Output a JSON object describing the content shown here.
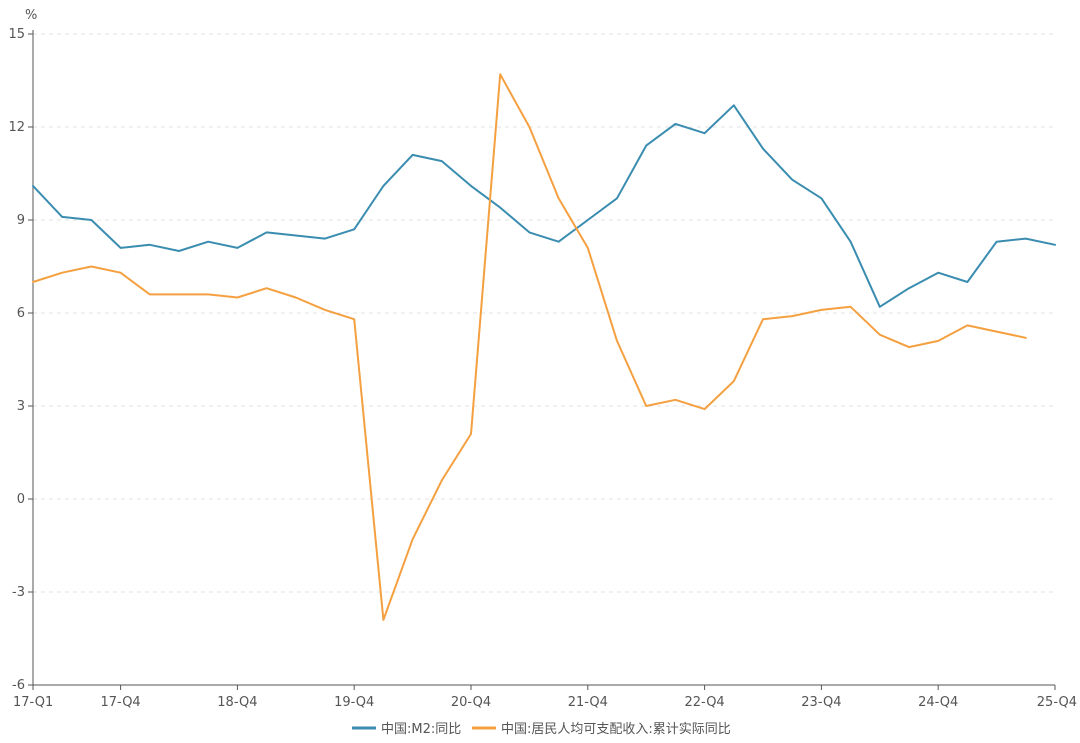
{
  "chart_data": {
    "type": "line",
    "title": "",
    "xlabel": "",
    "ylabel": "%",
    "ylim": [
      -6,
      15
    ],
    "yticks": [
      15,
      12,
      9,
      6,
      3,
      0,
      -3,
      -6
    ],
    "yticklabels": [
      "15",
      "12",
      "9",
      "6",
      "3",
      "0",
      "-3",
      "-6"
    ],
    "grid": "horizontal dashed",
    "legend": "bottom-center",
    "x": [
      "17-Q1",
      "17-Q2",
      "17-Q3",
      "17-Q4",
      "18-Q1",
      "18-Q2",
      "18-Q3",
      "18-Q4",
      "19-Q1",
      "19-Q2",
      "19-Q3",
      "19-Q4",
      "20-Q1",
      "20-Q2",
      "20-Q3",
      "20-Q4",
      "21-Q1",
      "21-Q2",
      "21-Q3",
      "21-Q4",
      "22-Q1",
      "22-Q2",
      "22-Q3",
      "22-Q4",
      "23-Q1",
      "23-Q2",
      "23-Q3",
      "23-Q4",
      "24-Q1",
      "24-Q2",
      "24-Q3",
      "24-Q4",
      "25-Q1",
      "25-Q2",
      "25-Q3",
      "25-Q4"
    ],
    "xtick_labels": [
      {
        "index": 0,
        "label": "17-Q1"
      },
      {
        "index": 3,
        "label": "17-Q4"
      },
      {
        "index": 7,
        "label": "18-Q4"
      },
      {
        "index": 11,
        "label": "19-Q4"
      },
      {
        "index": 15,
        "label": "20-Q4"
      },
      {
        "index": 19,
        "label": "21-Q4"
      },
      {
        "index": 23,
        "label": "22-Q4"
      },
      {
        "index": 27,
        "label": "23-Q4"
      },
      {
        "index": 31,
        "label": "24-Q4"
      },
      {
        "index": 35,
        "label": "25-Q4"
      }
    ],
    "series": [
      {
        "name": "中国:M2:同比",
        "color": "#3A8DB0",
        "values": [
          10.1,
          9.1,
          9.0,
          8.1,
          8.2,
          8.0,
          8.3,
          8.1,
          8.6,
          8.5,
          8.4,
          8.7,
          10.1,
          11.1,
          10.9,
          10.1,
          9.4,
          8.6,
          8.3,
          9.0,
          9.7,
          11.4,
          12.1,
          11.8,
          12.7,
          11.3,
          10.3,
          9.7,
          8.3,
          6.2,
          6.8,
          7.3,
          7.0,
          8.3,
          8.4,
          8.2
        ]
      },
      {
        "name": "中国:居民人均可支配收入:累计实际同比",
        "color": "#F5A040",
        "values": [
          7.0,
          7.3,
          7.5,
          7.3,
          6.6,
          6.6,
          6.6,
          6.5,
          6.8,
          6.5,
          6.1,
          5.8,
          -3.9,
          -1.3,
          0.6,
          2.1,
          13.7,
          12.0,
          9.7,
          8.1,
          5.1,
          3.0,
          3.2,
          2.9,
          3.8,
          5.8,
          5.9,
          6.1,
          6.2,
          5.3,
          4.9,
          5.1,
          5.6,
          5.4,
          5.2,
          null
        ]
      }
    ]
  }
}
